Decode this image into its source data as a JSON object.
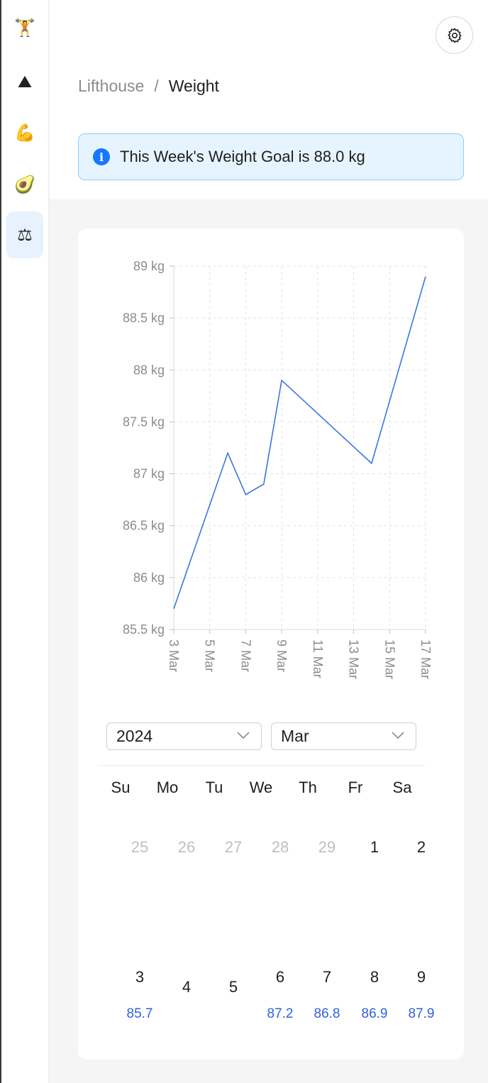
{
  "sidebar": {
    "items": [
      {
        "icon": "weightlifter-icon",
        "glyph": "🏋"
      },
      {
        "icon": "mountain-icon",
        "glyph": "⛰"
      },
      {
        "icon": "flexed-biceps-icon",
        "glyph": "💪"
      },
      {
        "icon": "avocado-icon",
        "glyph": "🥑"
      },
      {
        "icon": "balance-scale-icon",
        "glyph": "⚖"
      }
    ],
    "active_index": 4
  },
  "header": {
    "settings_icon": "gear-icon",
    "breadcrumb": {
      "root": "Lifthouse",
      "separator": "/",
      "current": "Weight"
    }
  },
  "alert": {
    "icon": "info-icon",
    "text": "This Week's Weight Goal is 88.0 kg"
  },
  "colors": {
    "accent": "#1677ff",
    "line": "#3b77e0",
    "value_text": "#2f63d8",
    "alert_bg": "#e6f4ff",
    "alert_border": "#91caff"
  },
  "chart_data": {
    "type": "line",
    "y_unit": "kg",
    "ylim": [
      85.5,
      89
    ],
    "y_ticks": [
      "85.5 kg",
      "86 kg",
      "86.5 kg",
      "87 kg",
      "87.5 kg",
      "88 kg",
      "88.5 kg",
      "89 kg"
    ],
    "x_ticks": [
      "3 Mar",
      "5 Mar",
      "7 Mar",
      "9 Mar",
      "11 Mar",
      "13 Mar",
      "15 Mar",
      "17 Mar"
    ],
    "xlim": [
      "2024-03-03",
      "2024-03-17"
    ],
    "grid": true,
    "series": [
      {
        "x": [
          "2024-03-03",
          "2024-03-06",
          "2024-03-07",
          "2024-03-08",
          "2024-03-09",
          "2024-03-14",
          "2024-03-17"
        ],
        "y": [
          85.7,
          87.2,
          86.8,
          86.9,
          87.9,
          87.1,
          88.9
        ]
      }
    ]
  },
  "calendar": {
    "year": "2024",
    "month": "Mar",
    "weekdays": [
      "Su",
      "Mo",
      "Tu",
      "We",
      "Th",
      "Fr",
      "Sa"
    ],
    "weeks": [
      [
        {
          "day": "25",
          "in_month": false,
          "value": ""
        },
        {
          "day": "26",
          "in_month": false,
          "value": ""
        },
        {
          "day": "27",
          "in_month": false,
          "value": ""
        },
        {
          "day": "28",
          "in_month": false,
          "value": ""
        },
        {
          "day": "29",
          "in_month": false,
          "value": ""
        },
        {
          "day": "1",
          "in_month": true,
          "value": ""
        },
        {
          "day": "2",
          "in_month": true,
          "value": ""
        }
      ],
      [
        {
          "day": "3",
          "in_month": true,
          "value": "85.7"
        },
        {
          "day": "4",
          "in_month": true,
          "value": ""
        },
        {
          "day": "5",
          "in_month": true,
          "value": ""
        },
        {
          "day": "6",
          "in_month": true,
          "value": "87.2"
        },
        {
          "day": "7",
          "in_month": true,
          "value": "86.8"
        },
        {
          "day": "8",
          "in_month": true,
          "value": "86.9"
        },
        {
          "day": "9",
          "in_month": true,
          "value": "87.9"
        }
      ]
    ]
  }
}
